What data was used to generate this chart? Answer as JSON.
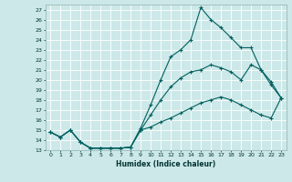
{
  "xlabel": "Humidex (Indice chaleur)",
  "bg_color": "#cde8e8",
  "grid_color": "#ffffff",
  "line_color": "#006060",
  "xlim": [
    -0.5,
    23.5
  ],
  "ylim": [
    13,
    27.5
  ],
  "yticks": [
    13,
    14,
    15,
    16,
    17,
    18,
    19,
    20,
    21,
    22,
    23,
    24,
    25,
    26,
    27
  ],
  "xticks": [
    0,
    1,
    2,
    3,
    4,
    5,
    6,
    7,
    8,
    9,
    10,
    11,
    12,
    13,
    14,
    15,
    16,
    17,
    18,
    19,
    20,
    21,
    22,
    23
  ],
  "line1_y": [
    14.8,
    14.3,
    15.0,
    13.8,
    13.2,
    13.2,
    13.2,
    13.2,
    13.3,
    15.0,
    15.3,
    15.8,
    16.2,
    16.7,
    17.2,
    17.7,
    18.0,
    18.3,
    18.0,
    17.5,
    17.0,
    16.5,
    16.2,
    18.2
  ],
  "line2_y": [
    14.8,
    14.3,
    15.0,
    13.8,
    13.2,
    13.2,
    13.2,
    13.2,
    13.3,
    15.0,
    16.5,
    18.0,
    19.3,
    20.2,
    20.8,
    21.0,
    21.5,
    21.2,
    20.8,
    20.0,
    21.5,
    21.0,
    19.5,
    18.2
  ],
  "line3_y": [
    14.8,
    14.3,
    15.0,
    13.8,
    13.2,
    13.2,
    13.2,
    13.2,
    13.3,
    15.2,
    17.5,
    20.0,
    22.3,
    23.0,
    24.0,
    27.2,
    26.0,
    25.2,
    24.2,
    23.2,
    23.2,
    21.0,
    19.8,
    18.2
  ]
}
